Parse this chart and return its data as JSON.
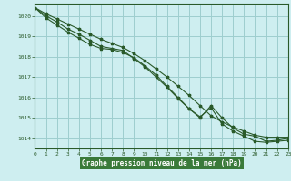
{
  "title": "Graphe pression niveau de la mer (hPa)",
  "background_color": "#ceeef0",
  "grid_color": "#9ecece",
  "line_color": "#2a5a2a",
  "label_bg_color": "#3a7a3a",
  "label_text_color": "#ffffff",
  "x_min": 0,
  "x_max": 23,
  "y_min": 1013.5,
  "y_max": 1020.6,
  "yticks": [
    1014,
    1015,
    1016,
    1017,
    1018,
    1019,
    1020
  ],
  "xticks": [
    0,
    1,
    2,
    3,
    4,
    5,
    6,
    7,
    8,
    9,
    10,
    11,
    12,
    13,
    14,
    15,
    16,
    17,
    18,
    19,
    20,
    21,
    22,
    23
  ],
  "series1_x": [
    0,
    1,
    2,
    3,
    4,
    5,
    6,
    7,
    8,
    9,
    10,
    11,
    12,
    13,
    14,
    15,
    16,
    17,
    18,
    19,
    20,
    21,
    22,
    23
  ],
  "series1": [
    1020.4,
    1020.1,
    1019.85,
    1019.6,
    1019.35,
    1019.1,
    1018.85,
    1018.65,
    1018.45,
    1018.15,
    1017.8,
    1017.4,
    1017.0,
    1016.55,
    1016.1,
    1015.6,
    1015.1,
    1014.8,
    1014.55,
    1014.35,
    1014.15,
    1014.05,
    1014.05,
    1014.05
  ],
  "series2_x": [
    0,
    1,
    2,
    3,
    4,
    5,
    6,
    7,
    8,
    9,
    10,
    11,
    12,
    13,
    14,
    15,
    16,
    17,
    18,
    19,
    20,
    21,
    22,
    23
  ],
  "series2": [
    1020.4,
    1019.9,
    1019.55,
    1019.2,
    1018.9,
    1018.6,
    1018.4,
    1018.35,
    1018.2,
    1017.95,
    1017.55,
    1017.1,
    1016.55,
    1016.0,
    1015.45,
    1015.05,
    1015.5,
    1014.7,
    1014.35,
    1014.1,
    1013.85,
    1013.8,
    1013.85,
    1013.9
  ],
  "series3_x": [
    0,
    1,
    2,
    3,
    4,
    5,
    6,
    7,
    8,
    9,
    10,
    11,
    12,
    13,
    14,
    15,
    16,
    17,
    18,
    19,
    20,
    21,
    22,
    23
  ],
  "series3": [
    1020.4,
    1020.0,
    1019.7,
    1019.35,
    1019.1,
    1018.8,
    1018.5,
    1018.4,
    1018.3,
    1017.9,
    1017.5,
    1017.0,
    1016.5,
    1015.95,
    1015.45,
    1015.0,
    1015.6,
    1015.0,
    1014.5,
    1014.2,
    1014.1,
    1013.85,
    1013.9,
    1014.0
  ]
}
